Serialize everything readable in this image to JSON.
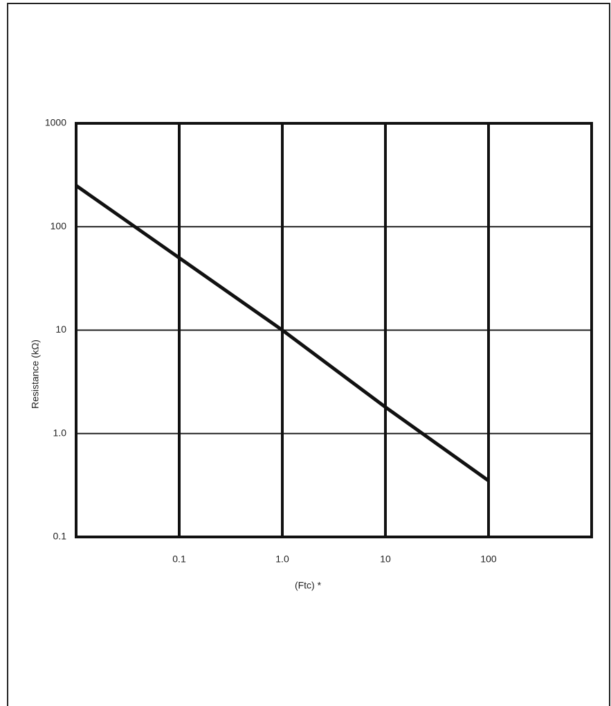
{
  "chart_data": {
    "type": "line",
    "ylabel": "Resistance (kΩ)",
    "xlabel": "(Ftc) *",
    "x": [
      0.01,
      0.1,
      1,
      10,
      100
    ],
    "values": [
      250,
      50,
      10,
      1.8,
      0.35
    ],
    "color": "#111111",
    "xscale": "log",
    "yscale": "log",
    "grid": true,
    "xlim": [
      0.01,
      1000
    ],
    "ylim": [
      0.1,
      1000
    ],
    "xticks": [
      0.1,
      {
        "value": 1,
        "label": "1.0"
      },
      10,
      100
    ],
    "yticks": [
      0.1,
      {
        "value": 1,
        "label": "1.0"
      },
      10,
      100,
      1000
    ]
  }
}
